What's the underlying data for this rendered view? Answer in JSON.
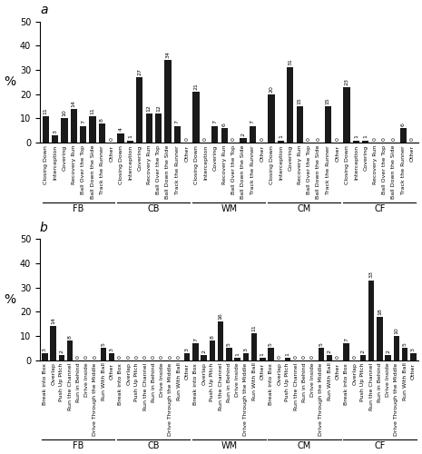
{
  "chart_data": [
    {
      "type": "bar",
      "title": "a",
      "ylabel": "%",
      "categories": [
        "Closing Down",
        "Interception",
        "Covering",
        "Recovery Run",
        "Ball Over the Top",
        "Ball Down the Side",
        "Track the Runner",
        "Other",
        "Closing Down",
        "Interception",
        "Covering",
        "Recovery Run",
        "Ball Over the Top",
        "Ball Down the Side",
        "Track the Runner",
        "Other",
        "Closing Down",
        "Interception",
        "Covering",
        "Recovery Run",
        "Ball Over the Top",
        "Ball Down the Side",
        "Track the Runner",
        "Other",
        "Closing Down",
        "Interception",
        "Covering",
        "Recovery Run",
        "Ball Over the Top",
        "Ball Down the Side",
        "Track the Runner",
        "Other",
        "Closing Down",
        "Interception",
        "Covering",
        "Recovery Run",
        "Ball Over the Top",
        "Ball Down the Side",
        "Track the Runner",
        "Other"
      ],
      "values": [
        11,
        3,
        10,
        14,
        7,
        11,
        8,
        0,
        4,
        1,
        27,
        12,
        12,
        34,
        7,
        0,
        21,
        0,
        7,
        6,
        0,
        2,
        7,
        0,
        20,
        1,
        31,
        15,
        0,
        0,
        15,
        0,
        23,
        1,
        1,
        0,
        0,
        0,
        6,
        0
      ],
      "annotations": [
        "FB",
        "CB",
        "WM",
        "CM",
        "CF"
      ],
      "color": "#1a1a1a",
      "ylim": [
        0,
        50
      ],
      "yticks": [
        0,
        10,
        20,
        30,
        40,
        50
      ],
      "data_labels": true
    },
    {
      "type": "bar",
      "title": "b",
      "ylabel": "%",
      "categories": [
        "Break into Box",
        "Overlap",
        "Push Up Pitch",
        "Run the Channel",
        "Run in Behind",
        "Drive Inside",
        "Drive Through the Middle",
        "Run With Ball",
        "Other",
        "Break into Box",
        "Overlap",
        "Push Up Pitch",
        "Run the Channel",
        "Run in Behind",
        "Drive Inside",
        "Drive Through the Middle",
        "Run With Ball",
        "Other",
        "Break into Box",
        "Overlap",
        "Push Up Pitch",
        "Run the Channel",
        "Run in Behind",
        "Drive Inside",
        "Drive Through the Middle",
        "Run With Ball",
        "Other",
        "Break into Box",
        "Overlap",
        "Push Up Pitch",
        "Run the Channel",
        "Run in Behind",
        "Drive Inside",
        "Drive Through the Middle",
        "Run With Ball",
        "Other",
        "Break into Box",
        "Overlap",
        "Push Up Pitch",
        "Run the Channel",
        "Run in Behind",
        "Drive Inside",
        "Drive Through the Middle",
        "Run With Ball",
        "Other"
      ],
      "values": [
        3,
        14,
        2,
        8,
        0,
        0,
        0,
        5,
        3,
        0,
        0,
        0,
        0,
        0,
        0,
        0,
        0,
        3,
        7,
        2,
        8,
        16,
        5,
        1,
        3,
        11,
        1,
        5,
        0,
        1,
        0,
        0,
        0,
        5,
        2,
        0,
        7,
        0,
        2,
        33,
        18,
        2,
        10,
        5,
        3
      ],
      "annotations": [
        "FB",
        "CB",
        "WM",
        "CM",
        "CF"
      ],
      "color": "#1a1a1a",
      "ylim": [
        0,
        50
      ],
      "yticks": [
        0,
        10,
        20,
        30,
        40,
        50
      ],
      "data_labels": true
    }
  ]
}
